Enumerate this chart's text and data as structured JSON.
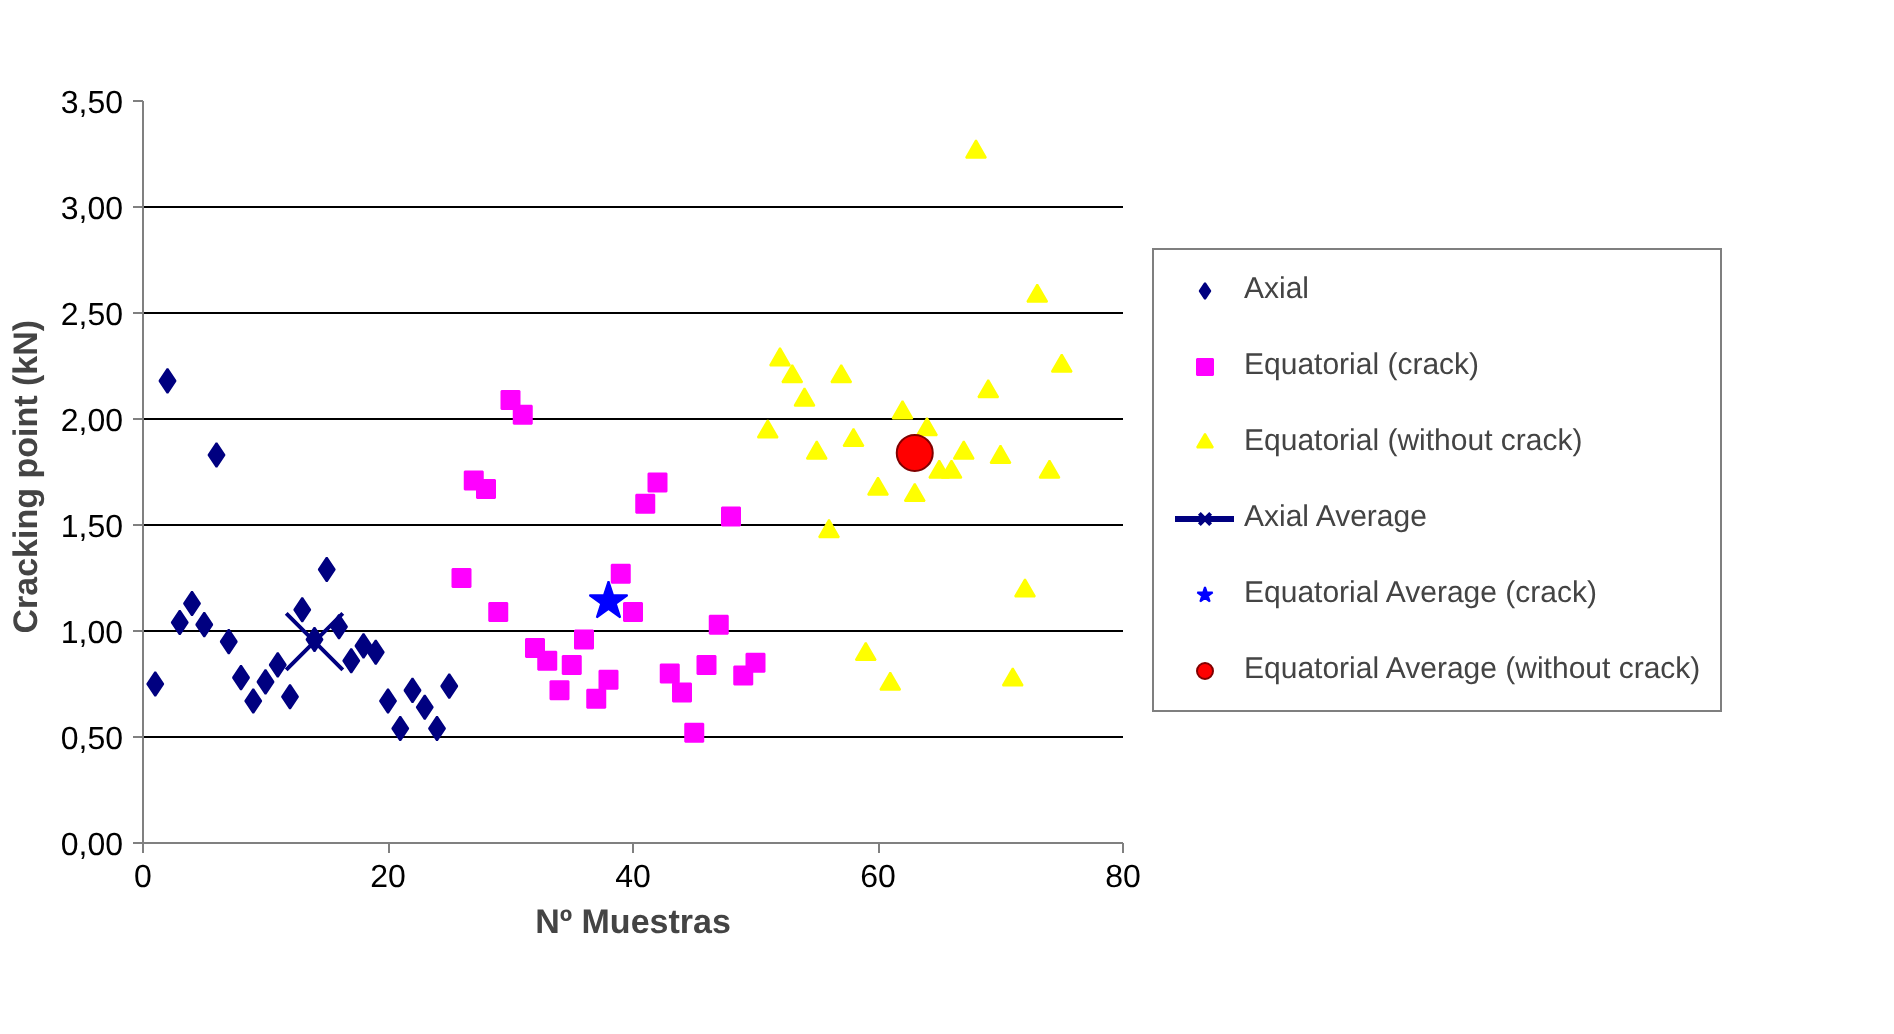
{
  "chart_data": {
    "type": "scatter",
    "xlabel": "Nº Muestras",
    "ylabel": "Cracking point  (kN)",
    "xlim": [
      0,
      80
    ],
    "xticks": [
      0,
      20,
      40,
      60,
      80
    ],
    "ylim": [
      0,
      3.5
    ],
    "yticks": [
      {
        "value": 0,
        "label": "0,00"
      },
      {
        "value": 0.5,
        "label": "0,50"
      },
      {
        "value": 1,
        "label": "1,00"
      },
      {
        "value": 1.5,
        "label": "1,50"
      },
      {
        "value": 2,
        "label": "2,00"
      },
      {
        "value": 2.5,
        "label": "2,50"
      },
      {
        "value": 3,
        "label": "3,00"
      },
      {
        "value": 3.5,
        "label": "3,50"
      }
    ],
    "grid": "y",
    "legend": "right",
    "series": [
      {
        "name": "Axial",
        "color": "#000080",
        "marker": "diamond",
        "x": [
          1,
          2,
          3,
          4,
          5,
          6,
          7,
          8,
          9,
          10,
          11,
          12,
          13,
          14,
          15,
          16,
          17,
          18,
          19,
          20,
          21,
          22,
          23,
          24,
          25
        ],
        "values": [
          0.75,
          2.18,
          1.04,
          1.13,
          1.03,
          1.83,
          0.95,
          0.78,
          0.67,
          0.76,
          0.84,
          0.69,
          1.1,
          0.96,
          1.29,
          1.02,
          0.86,
          0.93,
          0.9,
          0.67,
          0.54,
          0.72,
          0.64,
          0.54,
          0.74
        ]
      },
      {
        "name": "Equatorial (crack)",
        "color": "#ff00ff",
        "marker": "square",
        "x": [
          26,
          27,
          28,
          29,
          30,
          31,
          32,
          33,
          34,
          35,
          36,
          37,
          38,
          39,
          40,
          41,
          42,
          43,
          44,
          45,
          46,
          47,
          48,
          49,
          50
        ],
        "values": [
          1.25,
          1.71,
          1.67,
          1.09,
          2.09,
          2.02,
          0.92,
          0.86,
          0.72,
          0.84,
          0.96,
          0.68,
          0.77,
          1.27,
          1.09,
          1.6,
          1.7,
          0.8,
          0.71,
          0.52,
          0.84,
          1.03,
          1.54,
          0.79,
          0.85
        ]
      },
      {
        "name": "Equatorial (without crack)",
        "color": "#ffff00",
        "marker": "triangle",
        "x": [
          51,
          52,
          53,
          54,
          55,
          56,
          57,
          58,
          59,
          60,
          61,
          62,
          63,
          64,
          65,
          66,
          67,
          68,
          69,
          70,
          71,
          72,
          73,
          74,
          75
        ],
        "values": [
          1.94,
          2.28,
          2.2,
          2.09,
          1.84,
          1.47,
          2.2,
          1.9,
          0.89,
          1.67,
          0.75,
          2.03,
          1.64,
          1.95,
          1.75,
          1.75,
          1.84,
          3.26,
          2.13,
          1.82,
          0.77,
          1.19,
          2.58,
          1.75,
          2.25
        ]
      },
      {
        "name": "Axial Average",
        "type": "line",
        "color": "#000080",
        "marker": "cross",
        "x": [
          14
        ],
        "values": [
          0.95
        ]
      },
      {
        "name": "Equatorial Average (crack)",
        "color": "#0000ff",
        "marker": "star",
        "x": [
          38
        ],
        "values": [
          1.14
        ]
      },
      {
        "name": "Equatorial Average (without crack)",
        "color": "#ff0000",
        "marker": "circle",
        "x": [
          63
        ],
        "values": [
          1.84
        ]
      }
    ]
  }
}
